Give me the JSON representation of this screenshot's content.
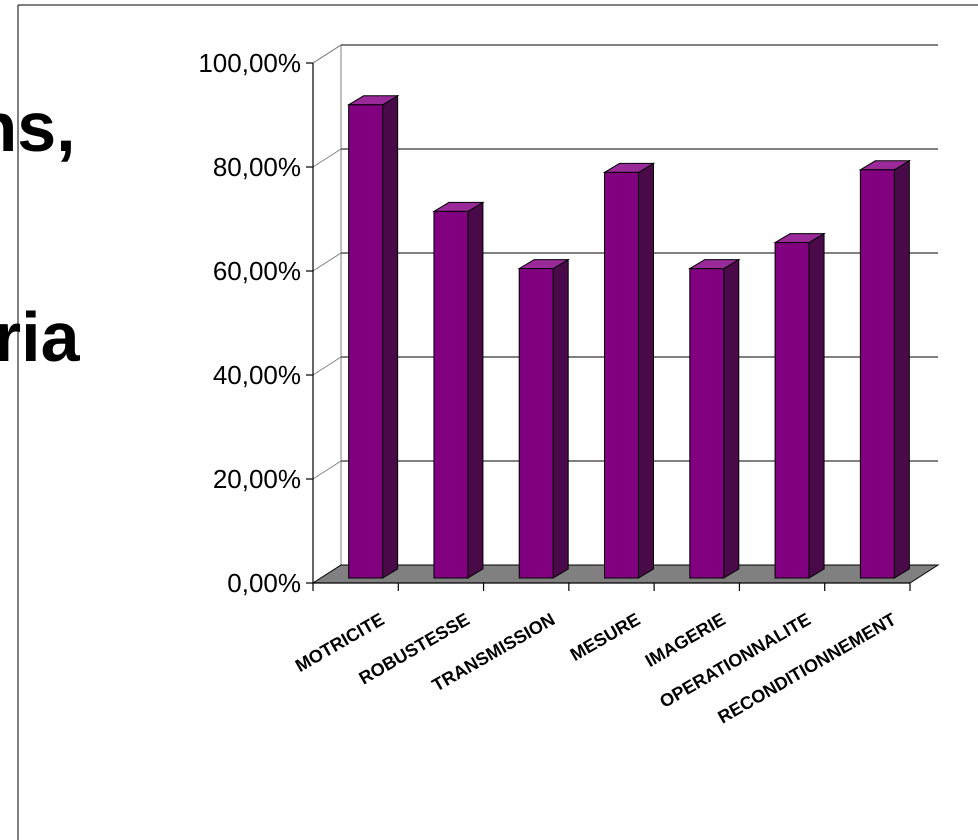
{
  "slide": {
    "title_fragment_top": "ins,",
    "title_fragment_bottom": "eria"
  },
  "chart_data": {
    "type": "bar",
    "style": "3d-column",
    "categories": [
      "MOTRICITE",
      "ROBUSTESSE",
      "TRANSMISSION",
      "MESURE",
      "IMAGERIE",
      "OPERATIONNALITE",
      "RECONDITIONNEMENT"
    ],
    "values": [
      0.91,
      0.705,
      0.595,
      0.78,
      0.595,
      0.645,
      0.785
    ],
    "ylim": [
      0,
      1
    ],
    "yticks": [
      "0,00%",
      "20,00%",
      "40,00%",
      "60,00%",
      "80,00%",
      "100,00%"
    ],
    "grid": true,
    "legend": "none",
    "colors": {
      "bar_front": "#800080",
      "bar_side": "#4a0a4a",
      "bar_top": "#9a2a9a",
      "floor": "#808080",
      "frame": "#000000"
    }
  }
}
